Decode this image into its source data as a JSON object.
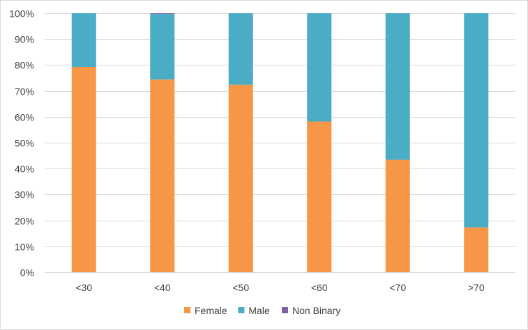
{
  "chart_data": {
    "type": "bar",
    "stacked": true,
    "percent": true,
    "categories": [
      "<30",
      "<40",
      "<50",
      "<60",
      "<70",
      ">70"
    ],
    "series": [
      {
        "name": "Female",
        "values": [
          79.3,
          74.4,
          72.4,
          58.2,
          43.4,
          17.3
        ],
        "color": "#f79646"
      },
      {
        "name": "Male",
        "values": [
          20.7,
          25.3,
          27.6,
          41.8,
          56.6,
          82.7
        ],
        "color": "#4bacc6"
      },
      {
        "name": "Non Binary",
        "values": [
          0,
          0.3,
          0,
          0,
          0,
          0
        ],
        "color": "#8064a2"
      }
    ],
    "ylim": [
      0,
      100
    ],
    "yticks": [
      "0%",
      "10%",
      "20%",
      "30%",
      "40%",
      "50%",
      "60%",
      "70%",
      "80%",
      "90%",
      "100%"
    ],
    "grid": true,
    "legend_position": "bottom",
    "title": "",
    "xlabel": "",
    "ylabel": ""
  }
}
